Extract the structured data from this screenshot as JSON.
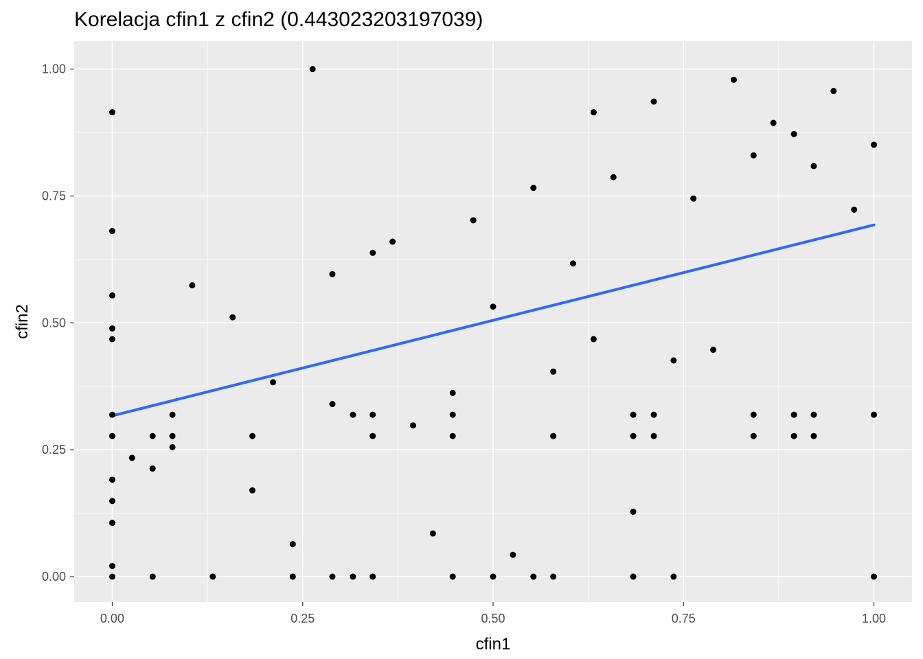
{
  "chart_data": {
    "type": "scatter",
    "title": "Korelacja cfin1 z cfin2 (0.443023203197039)",
    "xlabel": "cfin1",
    "ylabel": "cfin2",
    "xlim": [
      -0.05,
      1.05
    ],
    "ylim": [
      -0.05,
      1.055
    ],
    "xticks": [
      0.0,
      0.25,
      0.5,
      0.75,
      1.0
    ],
    "xtick_labels": [
      "0.00",
      "0.25",
      "0.50",
      "0.75",
      "1.00"
    ],
    "yticks": [
      0.0,
      0.25,
      0.5,
      0.75,
      1.0
    ],
    "ytick_labels": [
      "0.00",
      "0.25",
      "0.50",
      "0.75",
      "1.00"
    ],
    "grid": true,
    "colors": {
      "panel": "#ebebeb",
      "grid": "#ffffff",
      "points": "#000000",
      "trend": "#3366ff"
    },
    "trend_line": {
      "x": [
        0.0,
        1.0
      ],
      "y": [
        0.317,
        0.693
      ]
    },
    "points": [
      {
        "x": 0.0,
        "y": 0.915
      },
      {
        "x": 0.0,
        "y": 0.681
      },
      {
        "x": 0.0,
        "y": 0.554
      },
      {
        "x": 0.0,
        "y": 0.489
      },
      {
        "x": 0.0,
        "y": 0.468
      },
      {
        "x": 0.0,
        "y": 0.319
      },
      {
        "x": 0.0,
        "y": 0.277
      },
      {
        "x": 0.0,
        "y": 0.191
      },
      {
        "x": 0.0,
        "y": 0.149
      },
      {
        "x": 0.0,
        "y": 0.106
      },
      {
        "x": 0.0,
        "y": 0.021
      },
      {
        "x": 0.0,
        "y": 0.0
      },
      {
        "x": 0.026,
        "y": 0.234
      },
      {
        "x": 0.053,
        "y": 0.277
      },
      {
        "x": 0.053,
        "y": 0.213
      },
      {
        "x": 0.053,
        "y": 0.0
      },
      {
        "x": 0.079,
        "y": 0.319
      },
      {
        "x": 0.079,
        "y": 0.277
      },
      {
        "x": 0.079,
        "y": 0.255
      },
      {
        "x": 0.105,
        "y": 0.574
      },
      {
        "x": 0.132,
        "y": 0.0
      },
      {
        "x": 0.158,
        "y": 0.511
      },
      {
        "x": 0.184,
        "y": 0.277
      },
      {
        "x": 0.184,
        "y": 0.17
      },
      {
        "x": 0.211,
        "y": 0.383
      },
      {
        "x": 0.237,
        "y": 0.064
      },
      {
        "x": 0.237,
        "y": 0.0
      },
      {
        "x": 0.263,
        "y": 1.0
      },
      {
        "x": 0.289,
        "y": 0.596
      },
      {
        "x": 0.289,
        "y": 0.34
      },
      {
        "x": 0.289,
        "y": 0.0
      },
      {
        "x": 0.316,
        "y": 0.319
      },
      {
        "x": 0.316,
        "y": 0.0
      },
      {
        "x": 0.342,
        "y": 0.638
      },
      {
        "x": 0.342,
        "y": 0.319
      },
      {
        "x": 0.342,
        "y": 0.277
      },
      {
        "x": 0.342,
        "y": 0.0
      },
      {
        "x": 0.368,
        "y": 0.66
      },
      {
        "x": 0.395,
        "y": 0.298
      },
      {
        "x": 0.421,
        "y": 0.085
      },
      {
        "x": 0.447,
        "y": 0.362
      },
      {
        "x": 0.447,
        "y": 0.319
      },
      {
        "x": 0.447,
        "y": 0.277
      },
      {
        "x": 0.447,
        "y": 0.0
      },
      {
        "x": 0.474,
        "y": 0.702
      },
      {
        "x": 0.5,
        "y": 0.532
      },
      {
        "x": 0.5,
        "y": 0.0
      },
      {
        "x": 0.526,
        "y": 0.043
      },
      {
        "x": 0.553,
        "y": 0.766
      },
      {
        "x": 0.553,
        "y": 0.0
      },
      {
        "x": 0.579,
        "y": 0.404
      },
      {
        "x": 0.579,
        "y": 0.277
      },
      {
        "x": 0.579,
        "y": 0.0
      },
      {
        "x": 0.605,
        "y": 0.617
      },
      {
        "x": 0.632,
        "y": 0.915
      },
      {
        "x": 0.632,
        "y": 0.468
      },
      {
        "x": 0.658,
        "y": 0.787
      },
      {
        "x": 0.684,
        "y": 0.319
      },
      {
        "x": 0.684,
        "y": 0.277
      },
      {
        "x": 0.684,
        "y": 0.128
      },
      {
        "x": 0.684,
        "y": 0.0
      },
      {
        "x": 0.711,
        "y": 0.936
      },
      {
        "x": 0.711,
        "y": 0.319
      },
      {
        "x": 0.711,
        "y": 0.277
      },
      {
        "x": 0.737,
        "y": 0.426
      },
      {
        "x": 0.737,
        "y": 0.0
      },
      {
        "x": 0.763,
        "y": 0.745
      },
      {
        "x": 0.789,
        "y": 0.447
      },
      {
        "x": 0.816,
        "y": 0.979
      },
      {
        "x": 0.842,
        "y": 0.83
      },
      {
        "x": 0.842,
        "y": 0.319
      },
      {
        "x": 0.842,
        "y": 0.277
      },
      {
        "x": 0.868,
        "y": 0.894
      },
      {
        "x": 0.895,
        "y": 0.872
      },
      {
        "x": 0.895,
        "y": 0.319
      },
      {
        "x": 0.895,
        "y": 0.277
      },
      {
        "x": 0.921,
        "y": 0.809
      },
      {
        "x": 0.921,
        "y": 0.319
      },
      {
        "x": 0.921,
        "y": 0.277
      },
      {
        "x": 0.947,
        "y": 0.957
      },
      {
        "x": 0.974,
        "y": 0.723
      },
      {
        "x": 1.0,
        "y": 0.851
      },
      {
        "x": 1.0,
        "y": 0.319
      },
      {
        "x": 1.0,
        "y": 0.0
      }
    ]
  }
}
